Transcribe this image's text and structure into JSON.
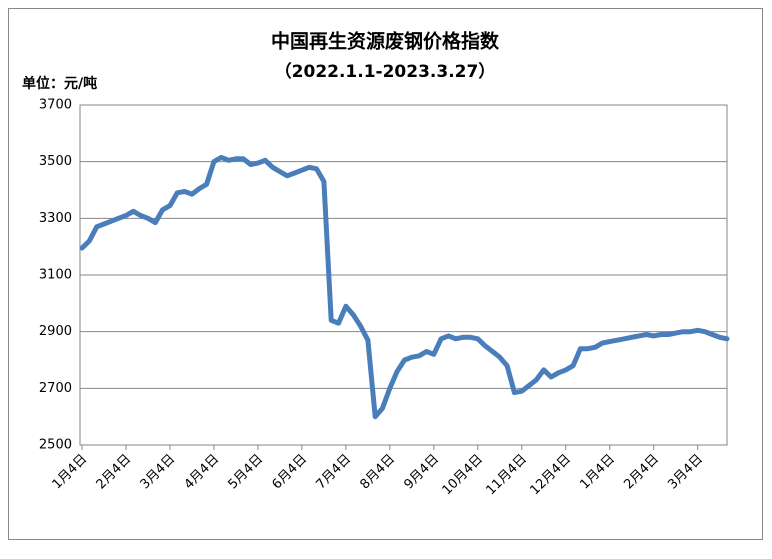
{
  "chart_data": {
    "type": "line",
    "title": "中国再生资源废钢价格指数",
    "subtitle": "（2022.1.1-2023.3.27）",
    "unit_label": "单位：元/吨",
    "categories": [
      "1月4日",
      null,
      null,
      null,
      null,
      null,
      "2月4日",
      null,
      null,
      null,
      null,
      null,
      "3月4日",
      null,
      null,
      null,
      null,
      null,
      "4月4日",
      null,
      null,
      null,
      null,
      null,
      "5月4日",
      null,
      null,
      null,
      null,
      null,
      "6月4日",
      null,
      null,
      null,
      null,
      null,
      "7月4日",
      null,
      null,
      null,
      null,
      null,
      "8月4日",
      null,
      null,
      null,
      null,
      null,
      "9月4日",
      null,
      null,
      null,
      null,
      null,
      "10月4日",
      null,
      null,
      null,
      null,
      null,
      "11月4日",
      null,
      null,
      null,
      null,
      null,
      "12月4日",
      null,
      null,
      null,
      null,
      null,
      "1月4日",
      null,
      null,
      null,
      null,
      null,
      "2月4日",
      null,
      null,
      null,
      null,
      null,
      "3月4日",
      null,
      null,
      null,
      null
    ],
    "values": [
      3195,
      3220,
      3270,
      3280,
      3290,
      3300,
      3310,
      3325,
      3310,
      3300,
      3285,
      3330,
      3345,
      3390,
      3395,
      3385,
      3405,
      3420,
      3500,
      3515,
      3505,
      3510,
      3510,
      3490,
      3495,
      3505,
      3480,
      3465,
      3450,
      3460,
      3470,
      3480,
      3475,
      3430,
      2940,
      2930,
      2990,
      2960,
      2920,
      2870,
      2600,
      2630,
      2700,
      2760,
      2800,
      2810,
      2815,
      2830,
      2820,
      2875,
      2885,
      2875,
      2880,
      2880,
      2875,
      2850,
      2830,
      2810,
      2780,
      2685,
      2690,
      2710,
      2730,
      2765,
      2740,
      2755,
      2765,
      2780,
      2840,
      2840,
      2845,
      2860,
      2865,
      2870,
      2875,
      2880,
      2885,
      2890,
      2885,
      2890,
      2890,
      2895,
      2900,
      2900,
      2905,
      2900,
      2890,
      2880,
      2875
    ],
    "color": "#4a7ebb",
    "ylim": [
      2500,
      3700
    ],
    "yticks": [
      2500,
      2700,
      2900,
      3100,
      3300,
      3500,
      3700
    ],
    "grid": true
  }
}
